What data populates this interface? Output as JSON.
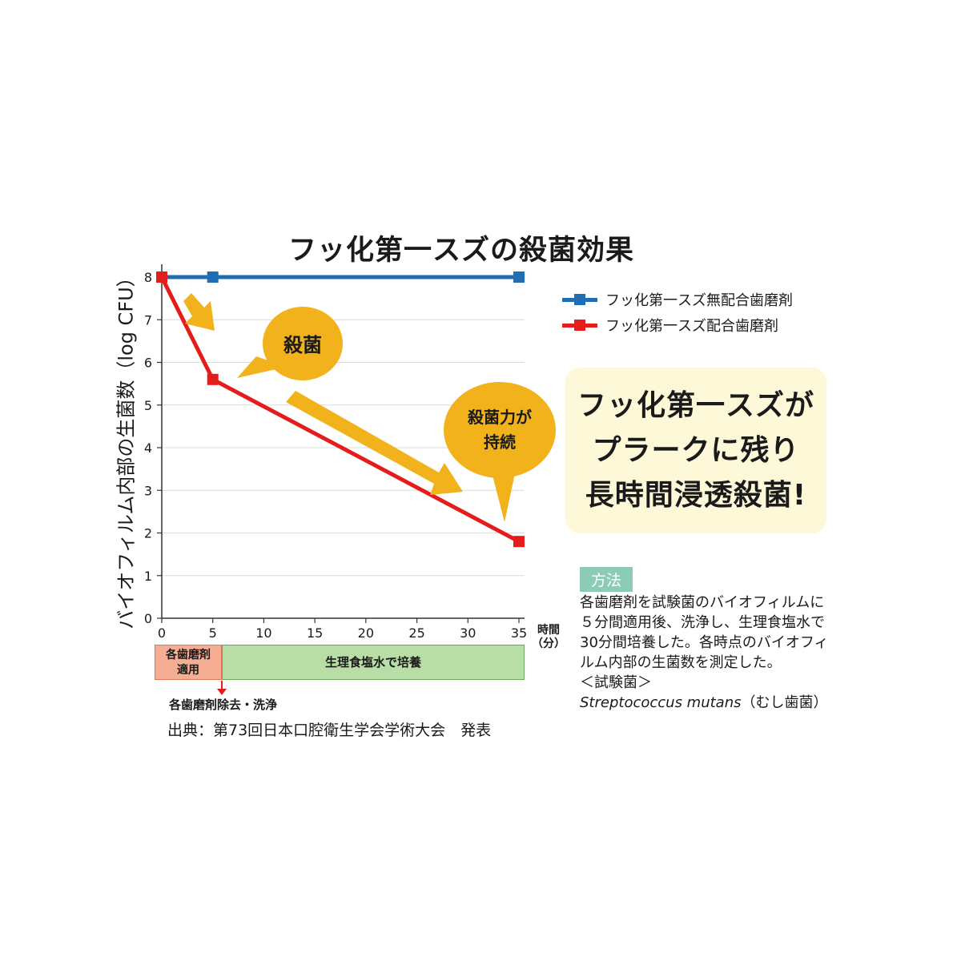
{
  "title": "フッ化第一スズの殺菌効果",
  "colors": {
    "blue": "#1f6db3",
    "red": "#e41c1c",
    "gold": "#f2b21c",
    "callout_bg": "#fdf8d8"
  },
  "chart_data": {
    "type": "line",
    "title": "フッ化第一スズの殺菌効果",
    "ylabel": "バイオフィルム内部の生菌数（log CFU）",
    "xlabel": "時間（分）",
    "xlabel_lines": [
      "時間",
      "（分）"
    ],
    "xlim": [
      0,
      35
    ],
    "ylim": [
      0,
      8
    ],
    "xticks": [
      0,
      5,
      10,
      15,
      20,
      25,
      30,
      35
    ],
    "yticks": [
      0,
      1,
      2,
      3,
      4,
      5,
      6,
      7,
      8
    ],
    "grid": true,
    "legend": "right",
    "series": [
      {
        "name": "フッ化第一スズ無配合歯磨剤",
        "color": "#1f6db3",
        "x": [
          0,
          5,
          35
        ],
        "y": [
          8,
          8,
          8
        ]
      },
      {
        "name": "フッ化第一スズ配合歯磨剤",
        "color": "#e41c1c",
        "x": [
          0,
          5,
          35
        ],
        "y": [
          8,
          5.6,
          1.8
        ]
      }
    ],
    "annotations": {
      "bubble1": "殺菌",
      "bubble2_line1": "殺菌力が",
      "bubble2_line2": "持続"
    }
  },
  "callout": {
    "line1": "フッ化第一スズが",
    "line2": "プラークに残り",
    "line3": "長時間浸透殺菌!"
  },
  "method": {
    "tag": "方法",
    "line1": "各歯磨剤を試験菌のバイオフィルムに",
    "line2": "５分間適用後、洗浄し、生理食塩水で",
    "line3": "30分間培養した。各時点のバイオフィ",
    "line4": "ルム内部の生菌数を測定した。",
    "line5": "＜試験菌＞",
    "species": "Streptococcus mutans",
    "species_note": "（むし歯菌）"
  },
  "timeline": {
    "apply_line1": "各歯磨剤",
    "apply_line2": "適用",
    "culture": "生理食塩水で培養",
    "remove": "各歯磨剤除去・洗浄"
  },
  "source": "出典：第73回日本口腔衛生学会学術大会　発表"
}
